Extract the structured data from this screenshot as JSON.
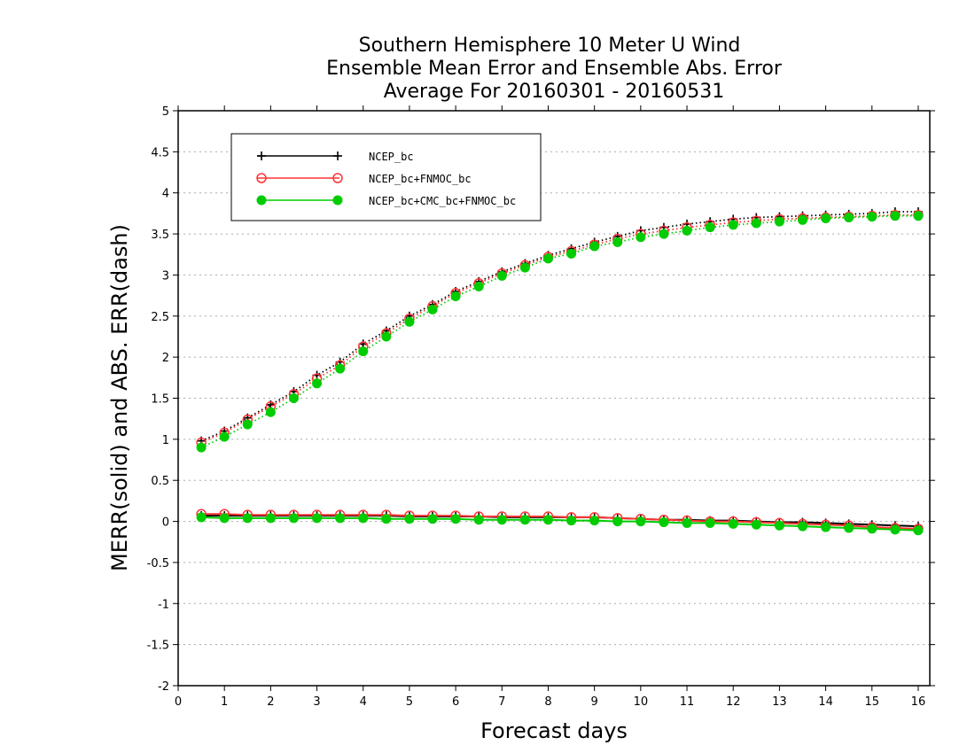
{
  "chart_data": {
    "type": "line",
    "title_lines": [
      "Southern Hemisphere 10 Meter U Wind",
      "Ensemble Mean Error and Ensemble Abs. Error",
      "Average For 20160301 - 20160531"
    ],
    "xlabel": "Forecast days",
    "ylabel": "MERR(solid) and ABS. ERR(dash)",
    "xlim": [
      0,
      16.25
    ],
    "ylim": [
      -2,
      5
    ],
    "xticks": [
      0,
      1,
      2,
      3,
      4,
      5,
      6,
      7,
      8,
      9,
      10,
      11,
      12,
      13,
      14,
      15,
      16
    ],
    "yticks": [
      -2,
      -1.5,
      -1,
      -0.5,
      0,
      0.5,
      1,
      1.5,
      2,
      2.5,
      3,
      3.5,
      4,
      4.5,
      5
    ],
    "ytick_labels": [
      "-2",
      "-1.5",
      "-1",
      "-0.5",
      "0",
      "0.5",
      "1",
      "1.5",
      "2",
      "2.5",
      "3",
      "3.5",
      "4",
      "4.5",
      "5"
    ],
    "grid": "horizontal dotted",
    "legend_position": "top-left",
    "x": [
      0.5,
      1,
      1.5,
      2,
      2.5,
      3,
      3.5,
      4,
      4.5,
      5,
      5.5,
      6,
      6.5,
      7,
      7.5,
      8,
      8.5,
      9,
      9.5,
      10,
      10.5,
      11,
      11.5,
      12,
      12.5,
      13,
      13.5,
      14,
      14.5,
      15,
      15.5,
      16
    ],
    "series": [
      {
        "name": "NCEP_bc",
        "color": "#000000",
        "marker": "plus",
        "abs_err": [
          0.98,
          1.1,
          1.26,
          1.42,
          1.58,
          1.78,
          1.94,
          2.16,
          2.32,
          2.5,
          2.64,
          2.8,
          2.92,
          3.04,
          3.14,
          3.24,
          3.32,
          3.4,
          3.47,
          3.54,
          3.58,
          3.62,
          3.65,
          3.68,
          3.7,
          3.71,
          3.72,
          3.73,
          3.74,
          3.75,
          3.77,
          3.77
        ],
        "mean_err": [
          0.07,
          0.07,
          0.07,
          0.07,
          0.07,
          0.07,
          0.07,
          0.07,
          0.07,
          0.06,
          0.06,
          0.06,
          0.06,
          0.05,
          0.05,
          0.05,
          0.05,
          0.05,
          0.04,
          0.03,
          0.02,
          0.02,
          0.01,
          0.01,
          0.0,
          -0.01,
          -0.01,
          -0.02,
          -0.03,
          -0.04,
          -0.05,
          -0.06
        ]
      },
      {
        "name": "NCEP_bc+FNMOC_bc",
        "color": "#ff3333",
        "marker": "open-circle",
        "abs_err": [
          0.96,
          1.08,
          1.24,
          1.4,
          1.55,
          1.74,
          1.9,
          2.13,
          2.29,
          2.47,
          2.62,
          2.78,
          2.9,
          3.02,
          3.12,
          3.22,
          3.29,
          3.37,
          3.44,
          3.5,
          3.54,
          3.58,
          3.61,
          3.64,
          3.66,
          3.68,
          3.69,
          3.7,
          3.71,
          3.72,
          3.73,
          3.73
        ],
        "mean_err": [
          0.09,
          0.09,
          0.08,
          0.08,
          0.08,
          0.08,
          0.08,
          0.08,
          0.08,
          0.07,
          0.07,
          0.07,
          0.06,
          0.06,
          0.06,
          0.06,
          0.05,
          0.05,
          0.04,
          0.03,
          0.02,
          0.01,
          0.0,
          0.0,
          -0.01,
          -0.02,
          -0.03,
          -0.04,
          -0.05,
          -0.07,
          -0.08,
          -0.09
        ]
      },
      {
        "name": "NCEP_bc+CMC_bc+FNMOC_bc",
        "color": "#00cc00",
        "marker": "filled-circle",
        "abs_err": [
          0.9,
          1.03,
          1.18,
          1.33,
          1.5,
          1.68,
          1.86,
          2.07,
          2.25,
          2.43,
          2.58,
          2.74,
          2.86,
          2.99,
          3.09,
          3.2,
          3.26,
          3.35,
          3.4,
          3.46,
          3.5,
          3.54,
          3.58,
          3.61,
          3.63,
          3.65,
          3.67,
          3.69,
          3.7,
          3.71,
          3.72,
          3.72
        ],
        "mean_err": [
          0.05,
          0.04,
          0.04,
          0.04,
          0.04,
          0.04,
          0.04,
          0.04,
          0.03,
          0.03,
          0.03,
          0.03,
          0.02,
          0.02,
          0.02,
          0.02,
          0.01,
          0.01,
          0.0,
          0.0,
          -0.01,
          -0.02,
          -0.02,
          -0.03,
          -0.04,
          -0.05,
          -0.06,
          -0.07,
          -0.08,
          -0.09,
          -0.1,
          -0.11
        ]
      }
    ]
  }
}
